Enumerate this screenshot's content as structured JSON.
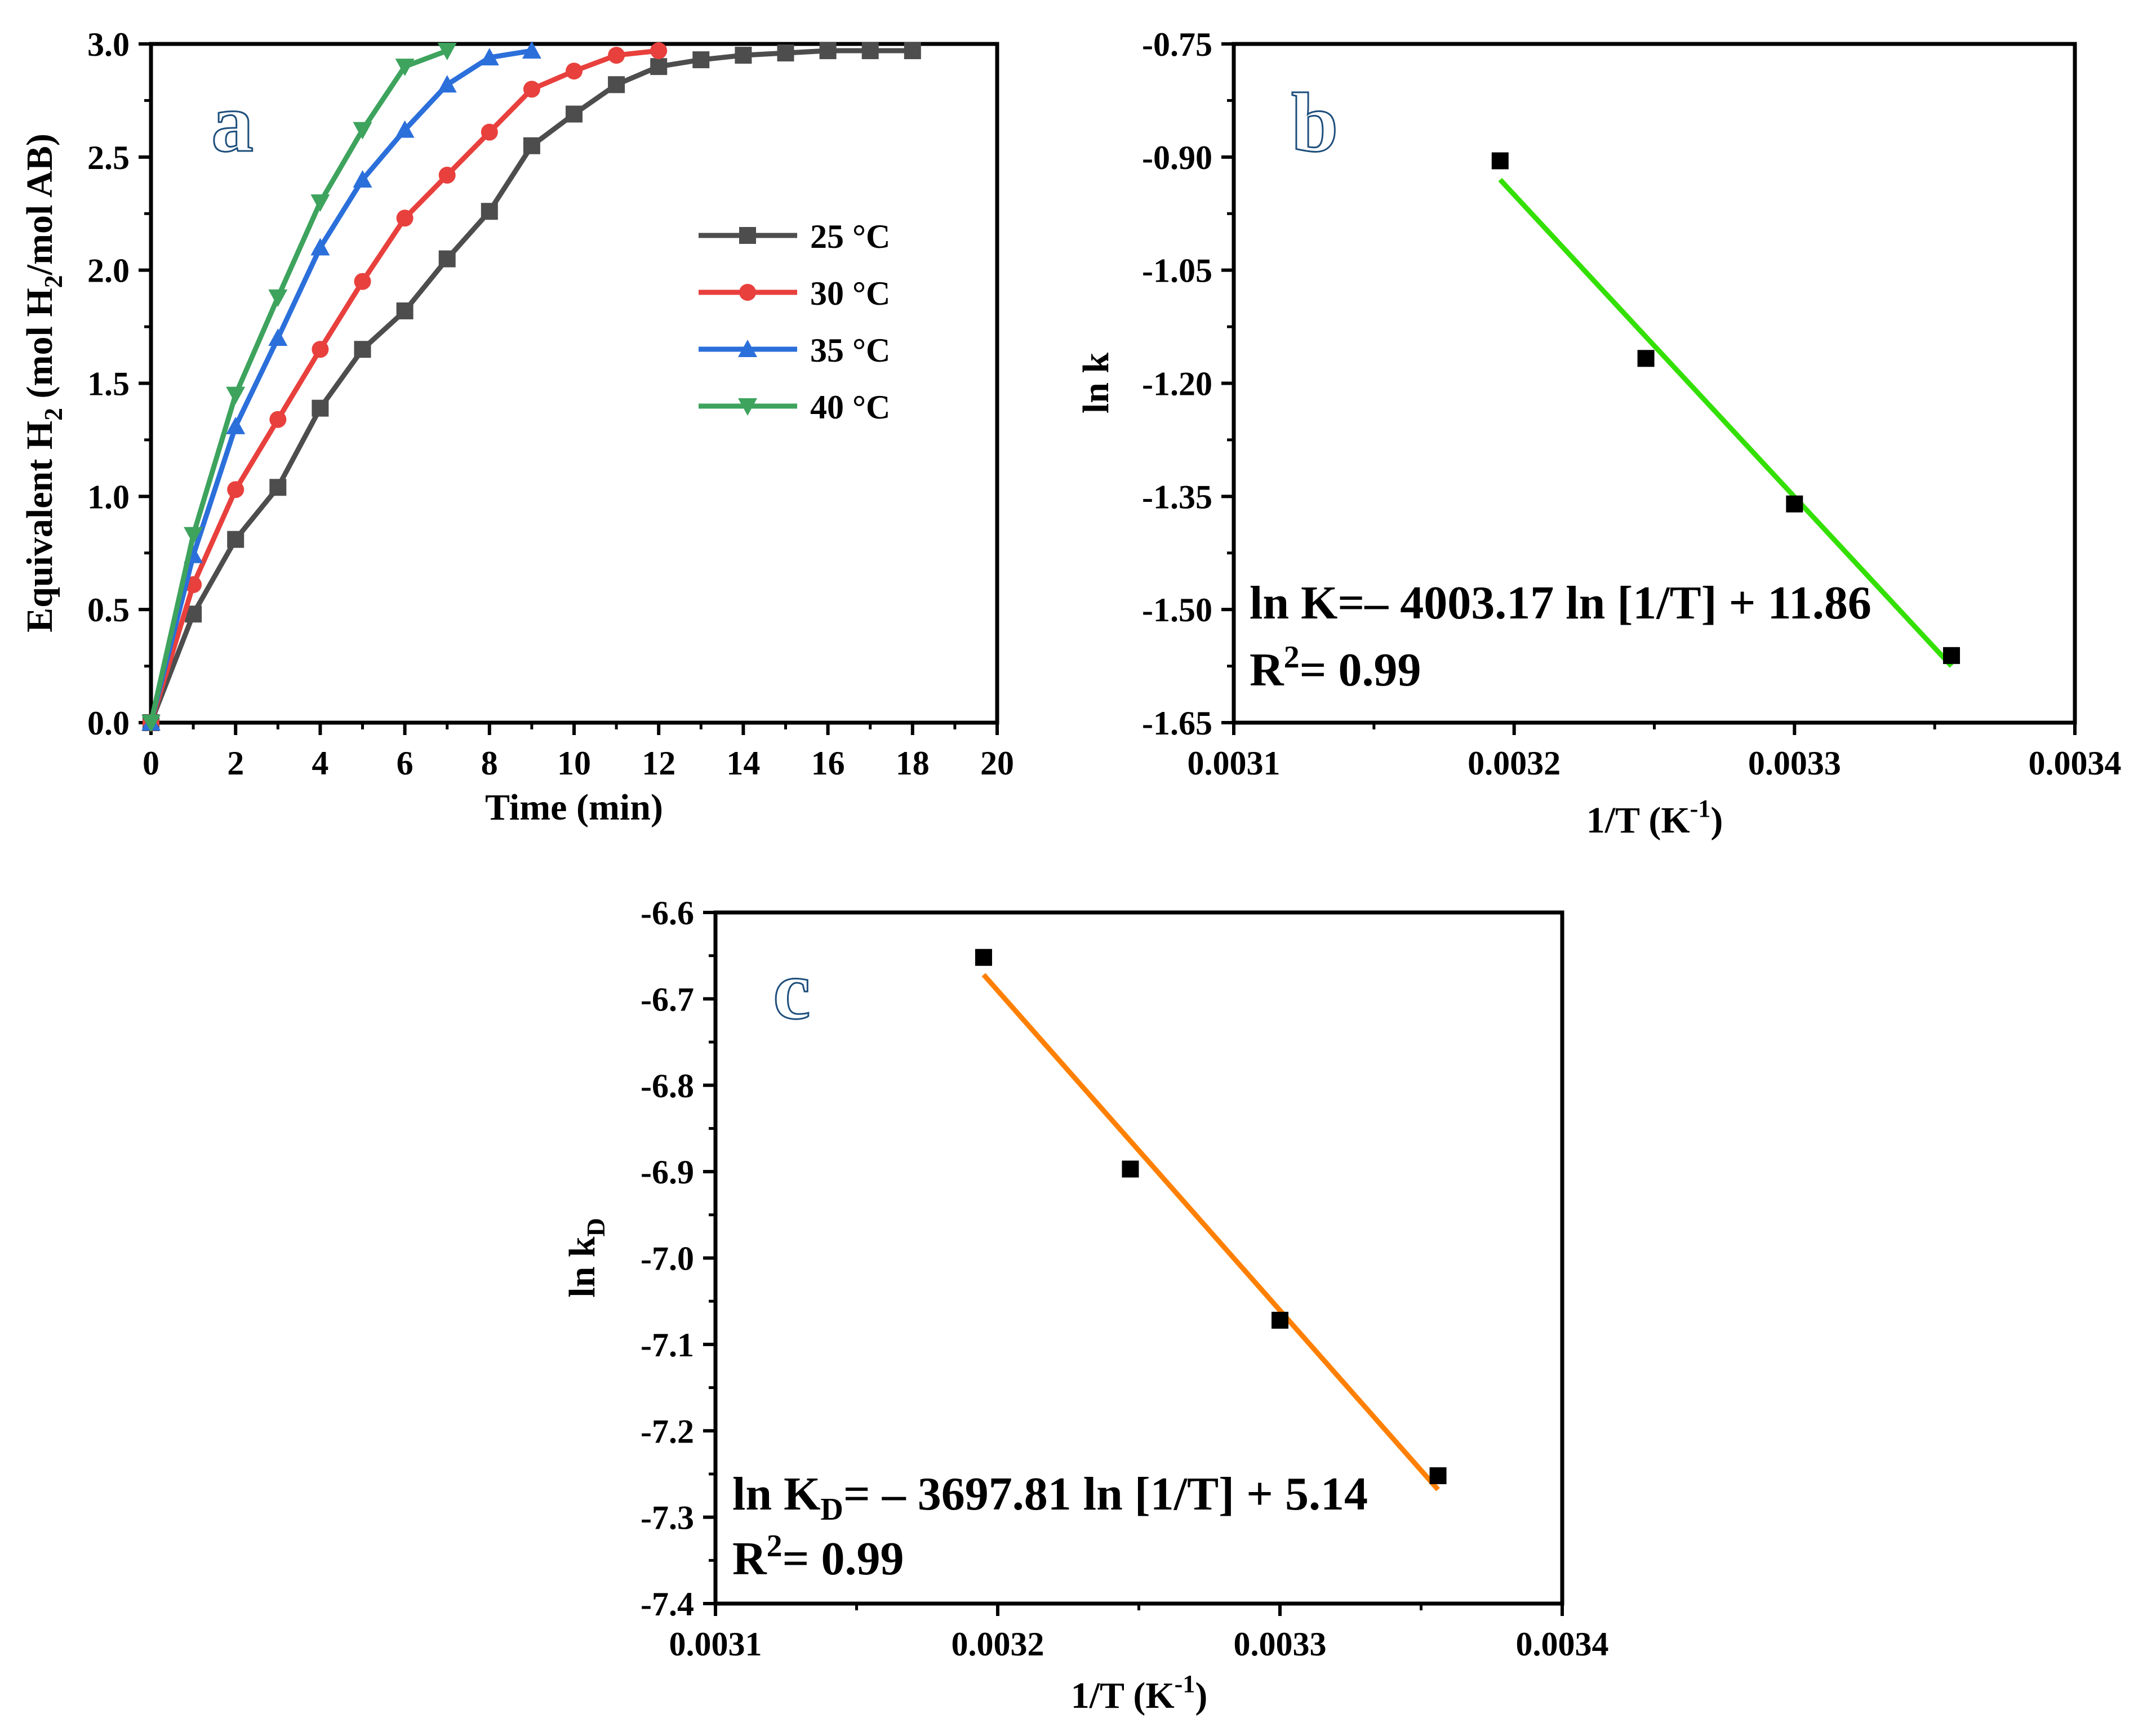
{
  "chart_data": [
    {
      "panel": "a",
      "type": "line",
      "xlabel": "Time (min)",
      "ylabel_parts": [
        "Equivalent H",
        "2",
        " (mol H",
        "2",
        "/mol AB)"
      ],
      "xlim": [
        0,
        20
      ],
      "ylim": [
        0.0,
        3.0
      ],
      "xticks": [
        "0",
        "2",
        "4",
        "6",
        "8",
        "10",
        "12",
        "14",
        "16",
        "18",
        "20"
      ],
      "yticks": [
        "0.0",
        "0.5",
        "1.0",
        "1.5",
        "2.0",
        "2.5",
        "3.0"
      ],
      "legend_position": "right-center",
      "series": [
        {
          "name": "25 °C",
          "color": "#4d4d4d",
          "marker": "square",
          "x": [
            0,
            1,
            2,
            3,
            4,
            5,
            6,
            7,
            8,
            9,
            10,
            11,
            12,
            13,
            14,
            15,
            16,
            17,
            18
          ],
          "y": [
            0.0,
            0.48,
            0.81,
            1.04,
            1.39,
            1.65,
            1.82,
            2.05,
            2.26,
            2.55,
            2.69,
            2.82,
            2.9,
            2.93,
            2.95,
            2.96,
            2.97,
            2.97,
            2.97
          ]
        },
        {
          "name": "30 °C",
          "color": "#e8403d",
          "marker": "circle",
          "x": [
            0,
            1,
            2,
            3,
            4,
            5,
            6,
            7,
            8,
            9,
            10,
            11,
            12
          ],
          "y": [
            0.0,
            0.61,
            1.03,
            1.34,
            1.65,
            1.95,
            2.23,
            2.42,
            2.61,
            2.8,
            2.88,
            2.95,
            2.97
          ]
        },
        {
          "name": "35 °C",
          "color": "#2b6fdb",
          "marker": "triangle-up",
          "x": [
            0,
            1,
            2,
            3,
            4,
            5,
            6,
            7,
            8,
            9
          ],
          "y": [
            0.0,
            0.74,
            1.31,
            1.7,
            2.1,
            2.4,
            2.62,
            2.82,
            2.94,
            2.97
          ]
        },
        {
          "name": "40 °C",
          "color": "#3da35d",
          "marker": "triangle-down",
          "x": [
            0,
            1,
            2,
            3,
            4,
            5,
            6,
            7
          ],
          "y": [
            0.0,
            0.83,
            1.45,
            1.88,
            2.3,
            2.62,
            2.9,
            2.97
          ]
        }
      ]
    },
    {
      "panel": "b",
      "type": "scatter",
      "xlabel_parts": [
        "1/T (K",
        "-1",
        ")"
      ],
      "ylabel": "ln k",
      "xlim": [
        0.0031,
        0.0034
      ],
      "ylim": [
        -1.65,
        -0.75
      ],
      "xticks": [
        "0.0031",
        "0.0032",
        "0.0033",
        "0.0034"
      ],
      "yticks": [
        "-0.75",
        "-0.90",
        "-1.05",
        "-1.20",
        "-1.35",
        "-1.50",
        "-1.65"
      ],
      "points": {
        "x": [
          0.003195,
          0.003247,
          0.0033,
          0.003356
        ],
        "y": [
          -0.905,
          -1.167,
          -1.36,
          -1.561
        ]
      },
      "fit_line": {
        "color": "#33e000",
        "x": [
          0.003195,
          0.003356
        ],
        "y": [
          -0.93,
          -1.575
        ]
      },
      "equation": "ln K=– 4003.17 ln [1/T] + 11.86",
      "r2_parts": [
        "R",
        "2",
        "= 0.99"
      ]
    },
    {
      "panel": "c",
      "type": "scatter",
      "xlabel_parts": [
        "1/T (K",
        "-1",
        ")"
      ],
      "ylabel_parts": [
        "ln k",
        "D"
      ],
      "xlim": [
        0.0031,
        0.0034
      ],
      "ylim": [
        -7.4,
        -6.6
      ],
      "xticks": [
        "0.0031",
        "0.0032",
        "0.0033",
        "0.0034"
      ],
      "yticks": [
        "-6.6",
        "-6.7",
        "-6.8",
        "-6.9",
        "-7.0",
        "-7.1",
        "-7.2",
        "-7.3",
        "-7.4"
      ],
      "points": {
        "x": [
          0.003195,
          0.003247,
          0.0033,
          0.003356
        ],
        "y": [
          -6.652,
          -6.897,
          -7.072,
          -7.252
        ]
      },
      "fit_line": {
        "color": "#ff8000",
        "x": [
          0.003195,
          0.003356
        ],
        "y": [
          -6.672,
          -7.268
        ]
      },
      "equation_parts": [
        "ln K",
        "D",
        "= – 3697.81 ln [1/T] + 5.14"
      ],
      "r2_parts": [
        "R",
        "2",
        "= 0.99"
      ]
    }
  ]
}
